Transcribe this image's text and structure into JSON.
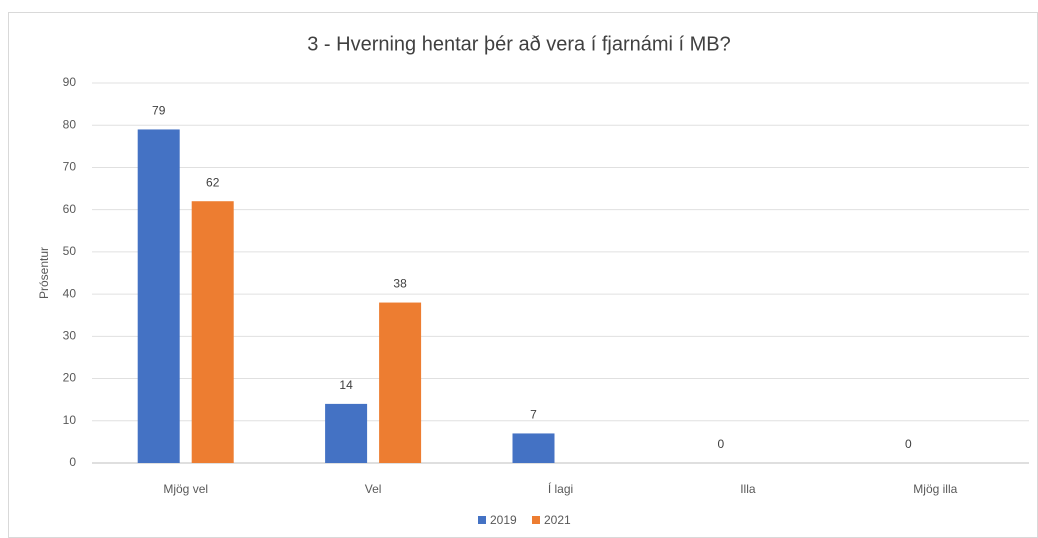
{
  "chart_data": {
    "type": "bar",
    "title": "3 - Hverning hentar þér að vera í fjarnámi í MB?",
    "y_label": "Prósentur",
    "categories": [
      "Mjög vel",
      "Vel",
      "Í lagi",
      "Illa",
      "Mjög illa"
    ],
    "series": [
      {
        "name": "2019",
        "color": "#4472c4",
        "values": [
          79,
          14,
          7,
          0,
          0
        ]
      },
      {
        "name": "2021",
        "color": "#ed7d31",
        "values": [
          62,
          38,
          null,
          null,
          null
        ]
      }
    ],
    "ylim": [
      0,
      90
    ],
    "yticks": [
      0,
      10,
      20,
      30,
      40,
      50,
      60,
      70,
      80,
      90
    ],
    "grid": true,
    "legend": "bottom"
  }
}
